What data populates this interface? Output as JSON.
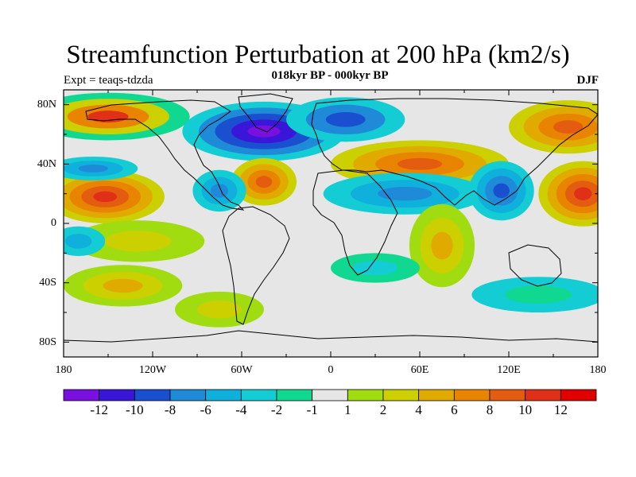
{
  "header": {
    "title": "Streamfunction Perturbation at 200 hPa (km2/s)",
    "subtitle": "018kyr BP - 000kyr BP",
    "left_label": "Expt = teaqs-tdzda",
    "right_label": "DJF"
  },
  "axes": {
    "lat_ticks": [
      "80N",
      "40N",
      "0",
      "40S",
      "80S"
    ],
    "lon_ticks": [
      "180",
      "120W",
      "60W",
      "0",
      "60E",
      "120E",
      "180"
    ]
  },
  "colorbar": {
    "labels": [
      "-12",
      "-10",
      "-8",
      "-6",
      "-4",
      "-2",
      "-1",
      "1",
      "2",
      "4",
      "6",
      "8",
      "10",
      "12"
    ],
    "colors": [
      "#7a10e0",
      "#3a16d8",
      "#1a50d0",
      "#1f8ad8",
      "#10b0dc",
      "#14ccd4",
      "#10d890",
      "#e6e6e6",
      "#a0dc10",
      "#ccd000",
      "#e0aa00",
      "#e88400",
      "#e45c10",
      "#e03018",
      "#e00000"
    ]
  },
  "map_data": {
    "projection": "cylindrical-equidistant",
    "lon_range": [
      -180,
      180
    ],
    "lat_range": [
      -90,
      90
    ],
    "field": "streamfunction-perturbation",
    "blobs": [
      {
        "lon": -150,
        "lat": 72,
        "rx": 55,
        "ry": 16,
        "levels": [
          "#10d890",
          "#ccd000",
          "#e88400",
          "#e03018"
        ]
      },
      {
        "lon": -152,
        "lat": 18,
        "rx": 40,
        "ry": 18,
        "levels": [
          "#ccd000",
          "#e0aa00",
          "#e88400",
          "#e45c10",
          "#e03018"
        ]
      },
      {
        "lon": -160,
        "lat": 37,
        "rx": 30,
        "ry": 8,
        "levels": [
          "#14ccd4",
          "#10b0dc",
          "#1f8ad8"
        ]
      },
      {
        "lon": -45,
        "lat": 62,
        "rx": 55,
        "ry": 20,
        "levels": [
          "#14ccd4",
          "#1f8ad8",
          "#1a50d0",
          "#3a16d8",
          "#7a10e0"
        ]
      },
      {
        "lon": 10,
        "lat": 70,
        "rx": 40,
        "ry": 15,
        "levels": [
          "#14ccd4",
          "#1f8ad8",
          "#1a50d0"
        ]
      },
      {
        "lon": -45,
        "lat": 28,
        "rx": 22,
        "ry": 16,
        "levels": [
          "#ccd000",
          "#e0aa00",
          "#e88400",
          "#e45c10"
        ]
      },
      {
        "lon": -75,
        "lat": 22,
        "rx": 18,
        "ry": 14,
        "levels": [
          "#14ccd4",
          "#10b0dc",
          "#1f8ad8"
        ]
      },
      {
        "lon": 60,
        "lat": 40,
        "rx": 60,
        "ry": 16,
        "levels": [
          "#ccd000",
          "#e0aa00",
          "#e88400",
          "#e45c10"
        ]
      },
      {
        "lon": 50,
        "lat": 20,
        "rx": 55,
        "ry": 14,
        "levels": [
          "#14ccd4",
          "#10b0dc",
          "#1f8ad8"
        ]
      },
      {
        "lon": 115,
        "lat": 22,
        "rx": 22,
        "ry": 20,
        "levels": [
          "#14ccd4",
          "#10b0dc",
          "#1f8ad8",
          "#1a50d0"
        ]
      },
      {
        "lon": 160,
        "lat": 65,
        "rx": 40,
        "ry": 18,
        "levels": [
          "#ccd000",
          "#e0aa00",
          "#e88400",
          "#e45c10"
        ]
      },
      {
        "lon": 170,
        "lat": 20,
        "rx": 30,
        "ry": 22,
        "levels": [
          "#ccd000",
          "#e0aa00",
          "#e88400",
          "#e45c10",
          "#e03018"
        ]
      },
      {
        "lon": 75,
        "lat": -15,
        "rx": 22,
        "ry": 28,
        "levels": [
          "#a0dc10",
          "#ccd000",
          "#e0aa00"
        ]
      },
      {
        "lon": -130,
        "lat": -12,
        "rx": 45,
        "ry": 14,
        "levels": [
          "#a0dc10",
          "#ccd000"
        ]
      },
      {
        "lon": -140,
        "lat": -42,
        "rx": 40,
        "ry": 14,
        "levels": [
          "#a0dc10",
          "#ccd000",
          "#e0aa00"
        ]
      },
      {
        "lon": -75,
        "lat": -58,
        "rx": 30,
        "ry": 12,
        "levels": [
          "#a0dc10",
          "#ccd000"
        ]
      },
      {
        "lon": 140,
        "lat": -48,
        "rx": 45,
        "ry": 12,
        "levels": [
          "#14ccd4",
          "#10d890"
        ]
      },
      {
        "lon": -170,
        "lat": -12,
        "rx": 18,
        "ry": 10,
        "levels": [
          "#14ccd4",
          "#10b0dc"
        ]
      },
      {
        "lon": 30,
        "lat": -30,
        "rx": 30,
        "ry": 10,
        "levels": [
          "#10d890",
          "#14ccd4"
        ]
      }
    ]
  }
}
